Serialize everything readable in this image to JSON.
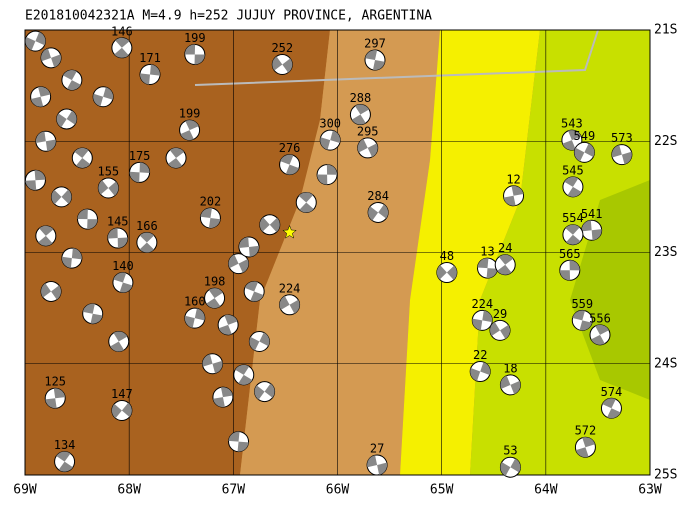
{
  "map": {
    "title": "E201810042321A M=4.9 h=252 JUJUY PROVINCE, ARGENTINA",
    "lonlim": [
      -69,
      -63
    ],
    "latlim": [
      -25,
      -21
    ],
    "lonticks": [
      {
        "value": -69,
        "label": "69W"
      },
      {
        "value": -68,
        "label": "68W"
      },
      {
        "value": -67,
        "label": "67W"
      },
      {
        "value": -66,
        "label": "66W"
      },
      {
        "value": -65,
        "label": "65W"
      },
      {
        "value": -64,
        "label": "64W"
      },
      {
        "value": -63,
        "label": "63W"
      }
    ],
    "latticks": [
      {
        "value": -21,
        "label": "21S"
      },
      {
        "value": -22,
        "label": "22S"
      },
      {
        "value": -23,
        "label": "23S"
      },
      {
        "value": -24,
        "label": "24S"
      },
      {
        "value": -25,
        "label": "25S"
      }
    ],
    "main_event": {
      "lon": -66.46,
      "lat": -22.82
    },
    "events": [
      {
        "lon": -67.37,
        "lat": -21.22,
        "depth": 199
      },
      {
        "lon": -68.07,
        "lat": -21.16,
        "depth": 146
      },
      {
        "lon": -67.8,
        "lat": -21.4,
        "depth": 171
      },
      {
        "lon": -66.53,
        "lat": -21.31,
        "depth": 252
      },
      {
        "lon": -65.64,
        "lat": -21.27,
        "depth": 297
      },
      {
        "lon": -65.78,
        "lat": -21.76,
        "depth": 288
      },
      {
        "lon": -66.07,
        "lat": -21.99,
        "depth": 300
      },
      {
        "lon": -65.71,
        "lat": -22.06,
        "depth": 295
      },
      {
        "lon": -66.46,
        "lat": -22.21,
        "depth": 276
      },
      {
        "lon": -63.75,
        "lat": -21.99,
        "depth": 543
      },
      {
        "lon": -63.63,
        "lat": -22.1,
        "depth": 549
      },
      {
        "lon": -63.27,
        "lat": -22.12,
        "depth": 573
      },
      {
        "lon": -63.74,
        "lat": -22.41,
        "depth": 545
      },
      {
        "lon": -64.31,
        "lat": -22.49,
        "depth": 12
      },
      {
        "lon": -65.61,
        "lat": -22.64,
        "depth": 284
      },
      {
        "lon": -63.56,
        "lat": -22.8,
        "depth": 541
      },
      {
        "lon": -63.74,
        "lat": -22.84,
        "depth": 554
      },
      {
        "lon": -63.77,
        "lat": -23.16,
        "depth": 565
      },
      {
        "lon": -64.95,
        "lat": -23.18,
        "depth": 48
      },
      {
        "lon": -64.56,
        "lat": -23.14,
        "depth": 13
      },
      {
        "lon": -64.39,
        "lat": -23.11,
        "depth": 24
      },
      {
        "lon": -64.61,
        "lat": -23.61,
        "depth": 224
      },
      {
        "lon": -64.44,
        "lat": -23.7,
        "depth": 29
      },
      {
        "lon": -63.65,
        "lat": -23.61,
        "depth": 559
      },
      {
        "lon": -63.48,
        "lat": -23.74,
        "depth": 556
      },
      {
        "lon": -64.63,
        "lat": -24.07,
        "depth": 22
      },
      {
        "lon": -64.34,
        "lat": -24.19,
        "depth": 18
      },
      {
        "lon": -63.37,
        "lat": -24.4,
        "depth": 574
      },
      {
        "lon": -63.62,
        "lat": -24.75,
        "depth": 572
      },
      {
        "lon": -64.34,
        "lat": -24.93,
        "depth": 53
      },
      {
        "lon": -65.62,
        "lat": -24.91,
        "depth": 27
      },
      {
        "lon": -68.62,
        "lat": -24.88,
        "depth": 134
      },
      {
        "lon": -68.71,
        "lat": -24.31,
        "depth": 125
      },
      {
        "lon": -68.07,
        "lat": -24.42,
        "depth": 147
      },
      {
        "lon": -68.11,
        "lat": -22.87,
        "depth": 145
      },
      {
        "lon": -67.83,
        "lat": -22.91,
        "depth": 166
      },
      {
        "lon": -67.9,
        "lat": -22.28,
        "depth": 175
      },
      {
        "lon": -68.2,
        "lat": -22.42,
        "depth": 155
      },
      {
        "lon": -67.22,
        "lat": -22.69,
        "depth": 202
      },
      {
        "lon": -67.18,
        "lat": -23.41,
        "depth": 198
      },
      {
        "lon": -67.37,
        "lat": -23.59,
        "depth": 160
      },
      {
        "lon": -66.46,
        "lat": -23.47,
        "depth": 224
      },
      {
        "lon": -68.06,
        "lat": -23.27,
        "depth": 140
      },
      {
        "lon": -67.42,
        "lat": -21.9,
        "depth": 199
      },
      {
        "lon": -68.9,
        "lat": -21.1,
        "depth": null
      },
      {
        "lon": -68.75,
        "lat": -21.25,
        "depth": null
      },
      {
        "lon": -68.55,
        "lat": -21.45,
        "depth": null
      },
      {
        "lon": -68.85,
        "lat": -21.6,
        "depth": null
      },
      {
        "lon": -68.6,
        "lat": -21.8,
        "depth": null
      },
      {
        "lon": -68.8,
        "lat": -22.0,
        "depth": null
      },
      {
        "lon": -68.45,
        "lat": -22.15,
        "depth": null
      },
      {
        "lon": -68.9,
        "lat": -22.35,
        "depth": null
      },
      {
        "lon": -68.65,
        "lat": -22.5,
        "depth": null
      },
      {
        "lon": -68.4,
        "lat": -22.7,
        "depth": null
      },
      {
        "lon": -68.8,
        "lat": -22.85,
        "depth": null
      },
      {
        "lon": -68.55,
        "lat": -23.05,
        "depth": null
      },
      {
        "lon": -68.75,
        "lat": -23.35,
        "depth": null
      },
      {
        "lon": -68.35,
        "lat": -23.55,
        "depth": null
      },
      {
        "lon": -68.1,
        "lat": -23.8,
        "depth": null
      },
      {
        "lon": -68.25,
        "lat": -21.6,
        "depth": null
      },
      {
        "lon": -66.95,
        "lat": -23.1,
        "depth": null
      },
      {
        "lon": -66.8,
        "lat": -23.35,
        "depth": null
      },
      {
        "lon": -67.05,
        "lat": -23.65,
        "depth": null
      },
      {
        "lon": -66.75,
        "lat": -23.8,
        "depth": null
      },
      {
        "lon": -67.2,
        "lat": -24.0,
        "depth": null
      },
      {
        "lon": -66.9,
        "lat": -24.1,
        "depth": null
      },
      {
        "lon": -67.1,
        "lat": -24.3,
        "depth": null
      },
      {
        "lon": -66.7,
        "lat": -24.25,
        "depth": null
      },
      {
        "lon": -66.85,
        "lat": -22.95,
        "depth": null
      },
      {
        "lon": -66.3,
        "lat": -22.55,
        "depth": null
      },
      {
        "lon": -66.1,
        "lat": -22.3,
        "depth": null
      },
      {
        "lon": -66.65,
        "lat": -22.75,
        "depth": null
      },
      {
        "lon": -66.95,
        "lat": -24.7,
        "depth": null
      },
      {
        "lon": -67.55,
        "lat": -22.15,
        "depth": null
      }
    ]
  }
}
